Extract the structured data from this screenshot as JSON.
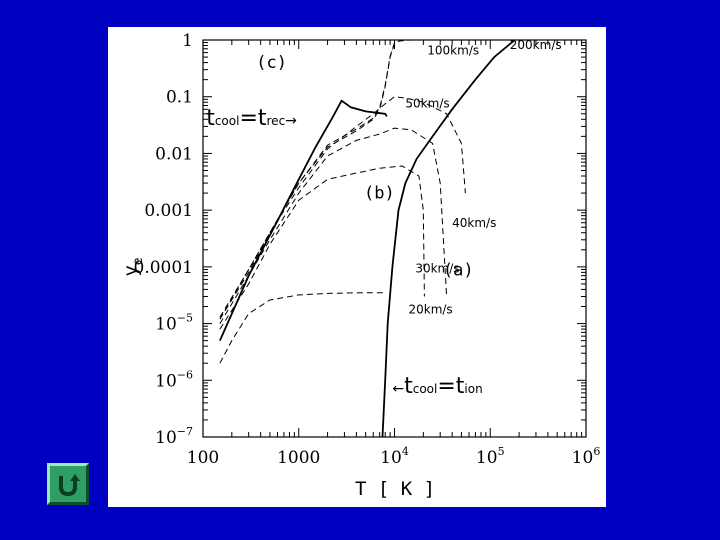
{
  "chart_data": {
    "type": "line",
    "xlabel": "T [ K ]",
    "ylabel": "y",
    "ylabel_subscript": "e",
    "x_scale": "log",
    "y_scale": "log",
    "xlim": [
      100,
      1000000
    ],
    "ylim": [
      1e-07,
      1
    ],
    "x_ticks": [
      {
        "value": 100,
        "base": "100",
        "exp": ""
      },
      {
        "value": 1000,
        "base": "1000",
        "exp": ""
      },
      {
        "value": 10000,
        "base": "10",
        "exp": "4"
      },
      {
        "value": 100000,
        "base": "10",
        "exp": "5"
      },
      {
        "value": 1000000,
        "base": "10",
        "exp": "6"
      }
    ],
    "y_ticks": [
      {
        "value": 1,
        "base": "1",
        "exp": ""
      },
      {
        "value": 0.1,
        "base": "0.1",
        "exp": ""
      },
      {
        "value": 0.01,
        "base": "0.01",
        "exp": ""
      },
      {
        "value": 0.001,
        "base": "0.001",
        "exp": ""
      },
      {
        "value": 0.0001,
        "base": "0.0001",
        "exp": ""
      },
      {
        "value": 1e-05,
        "base": "10",
        "exp": "−5"
      },
      {
        "value": 1e-06,
        "base": "10",
        "exp": "−6"
      },
      {
        "value": 1e-07,
        "base": "10",
        "exp": "−7"
      }
    ],
    "grid": false,
    "series": [
      {
        "name": "20km/s",
        "style": "dashed",
        "x": [
          150,
          200,
          300,
          500,
          1000,
          2000,
          5000,
          8000
        ],
        "y": [
          2e-06,
          5e-06,
          1.5e-05,
          2.6e-05,
          3.2e-05,
          3.4e-05,
          3.5e-05,
          3.5e-05
        ]
      },
      {
        "name": "30km/s",
        "style": "dashed",
        "x": [
          150,
          300,
          500,
          1000,
          2000,
          4000,
          7000,
          12000,
          18000,
          20000,
          20500
        ],
        "y": [
          8e-06,
          5e-05,
          0.00025,
          0.0015,
          0.0035,
          0.0045,
          0.0055,
          0.006,
          0.004,
          0.001,
          3e-05
        ]
      },
      {
        "name": "40km/s",
        "style": "dashed",
        "x": [
          150,
          300,
          500,
          1000,
          2000,
          4000,
          7000,
          10000,
          15000,
          25000,
          30000,
          35000
        ],
        "y": [
          1e-05,
          7e-05,
          0.0003,
          0.002,
          0.009,
          0.017,
          0.022,
          0.028,
          0.026,
          0.015,
          0.003,
          3e-05
        ]
      },
      {
        "name": "50km/s",
        "style": "dashed",
        "x": [
          150,
          300,
          500,
          1000,
          2000,
          4000,
          6000,
          8000,
          10000,
          13000,
          20000,
          35000,
          50000,
          55000
        ],
        "y": [
          1.2e-05,
          8e-05,
          0.0004,
          0.0025,
          0.012,
          0.03,
          0.05,
          0.075,
          0.1,
          0.095,
          0.08,
          0.05,
          0.015,
          0.002
        ]
      },
      {
        "name": "100km/s",
        "style": "dashed",
        "x": [
          150,
          300,
          500,
          1000,
          2000,
          4000,
          6000,
          7000,
          8000,
          9000,
          10000,
          11000,
          13000,
          15000
        ],
        "y": [
          1.2e-05,
          9e-05,
          0.0004,
          0.003,
          0.013,
          0.025,
          0.04,
          0.06,
          0.15,
          0.5,
          0.85,
          0.95,
          0.99,
          1
        ]
      },
      {
        "name": "200km/s",
        "style": "dashed",
        "x": [
          150,
          300,
          500,
          1000,
          2000,
          4000,
          6000,
          7000,
          8000,
          9000,
          10000,
          11000,
          13000,
          15000,
          20000
        ],
        "y": [
          1.3e-05,
          9e-05,
          0.0004,
          0.003,
          0.014,
          0.027,
          0.042,
          0.065,
          0.16,
          0.52,
          0.9,
          0.98,
          1,
          1,
          1
        ]
      },
      {
        "name": "t_cool=t_rec",
        "style": "solid",
        "x": [
          150,
          300,
          600,
          1000,
          1500,
          2200,
          2800,
          3500,
          5000,
          8000,
          8300
        ],
        "y": [
          5e-06,
          7e-05,
          0.00065,
          0.0035,
          0.013,
          0.04,
          0.085,
          0.065,
          0.055,
          0.05,
          0.045
        ]
      },
      {
        "name": "t_cool=t_ion",
        "style": "solid",
        "x": [
          7500,
          8000,
          8500,
          9500,
          11000,
          13000,
          17000,
          25000,
          40000,
          70000,
          110000,
          180000
        ],
        "y": [
          1e-07,
          1e-06,
          1e-05,
          0.0001,
          0.001,
          0.003,
          0.008,
          0.02,
          0.06,
          0.2,
          0.5,
          1.0
        ]
      }
    ],
    "curve_labels": [
      {
        "text": "20km/s",
        "x": 14000,
        "y": 1.5e-05
      },
      {
        "text": "30km/s",
        "x": 16500,
        "y": 8e-05
      },
      {
        "text": "40km/s",
        "x": 40000,
        "y": 0.0005
      },
      {
        "text": "50km/s",
        "x": 13000,
        "y": 0.065
      },
      {
        "text": "100km/s",
        "x": 22000,
        "y": 0.55
      },
      {
        "text": "200km/s",
        "x": 160000,
        "y": 0.7
      }
    ],
    "annotations": [
      {
        "id": "c",
        "text": "(c)",
        "x": 360,
        "y": 0.32
      },
      {
        "id": "b",
        "text": "(b)",
        "x": 4800,
        "y": 0.0016
      },
      {
        "id": "a",
        "text": "(a)",
        "x": 32000,
        "y": 7e-05
      }
    ],
    "trec_label": {
      "t": "t",
      "sub1": "cool",
      "eq": "=t",
      "sub2": "rec",
      "arrow": "→",
      "x": 108,
      "y": 0.032
    },
    "tion_label": {
      "arrow": "←",
      "t": "t",
      "sub1": "cool",
      "eq": "=t",
      "sub2": "ion",
      "x": 9500,
      "y": 6e-07
    }
  },
  "nav": {
    "return_icon": "u-turn-icon",
    "accent": "#2e9e66"
  }
}
